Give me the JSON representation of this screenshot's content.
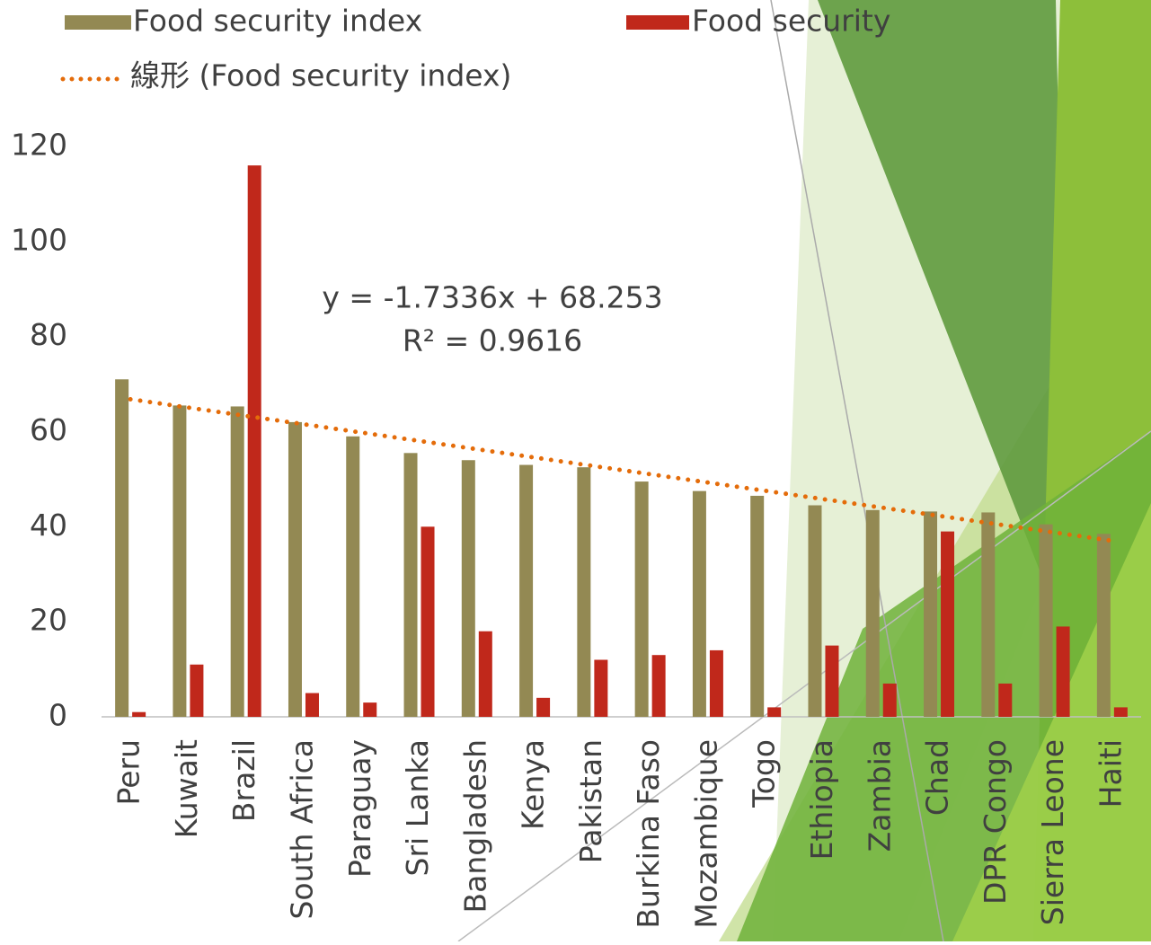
{
  "chart_data": {
    "type": "bar",
    "categories": [
      "Peru",
      "Kuwait",
      "Brazil",
      "South Africa",
      "Paraguay",
      "Sri Lanka",
      "Bangladesh",
      "Kenya",
      "Pakistan",
      "Burkina Faso",
      "Mozambique",
      "Togo",
      "Ethiopia",
      "Zambia",
      "Chad",
      "DPR Congo",
      "Sierra Leone",
      "Haiti"
    ],
    "series": [
      {
        "name": "Food security index",
        "color": "#938953",
        "values": [
          71,
          65.5,
          65.3,
          62,
          59,
          55.5,
          54,
          53,
          52.5,
          49.5,
          47.5,
          46.5,
          44.5,
          43.5,
          43.2,
          43,
          40.5,
          38.5
        ]
      },
      {
        "name": "Food security",
        "color": "#c0281b",
        "values": [
          1,
          11,
          116,
          5,
          3,
          40,
          18,
          4,
          12,
          13,
          14,
          2,
          15,
          7,
          39,
          7,
          19,
          2
        ]
      }
    ],
    "trendline": {
      "name": "線形 (Food security index)",
      "color": "#e46c0a",
      "style": "dotted"
    },
    "annotations": [
      "y = -1.7336x + 68.253",
      "R² = 0.9616"
    ],
    "ylim": [
      0,
      120
    ],
    "yticks": [
      0,
      20,
      40,
      60,
      80,
      100,
      120
    ],
    "grid": false
  }
}
